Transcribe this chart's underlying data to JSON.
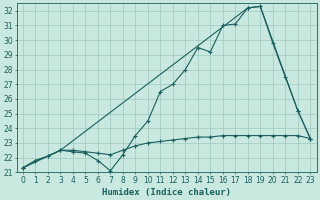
{
  "xlabel": "Humidex (Indice chaleur)",
  "bg_color": "#c8e8e0",
  "grid_color": "#a0c8c0",
  "line_color": "#1a6060",
  "xlim": [
    -0.5,
    23.5
  ],
  "ylim": [
    21,
    32.5
  ],
  "xticks": [
    0,
    1,
    2,
    3,
    4,
    5,
    6,
    7,
    8,
    9,
    10,
    11,
    12,
    13,
    14,
    15,
    16,
    17,
    18,
    19,
    20,
    21,
    22,
    23
  ],
  "yticks": [
    21,
    22,
    23,
    24,
    25,
    26,
    27,
    28,
    29,
    30,
    31,
    32
  ],
  "line1_x": [
    0,
    1,
    2,
    3,
    4,
    5,
    6,
    7,
    8,
    9,
    10,
    11,
    12,
    13,
    14,
    15,
    16,
    17,
    18,
    19,
    20,
    21,
    22,
    23
  ],
  "line1_y": [
    21.3,
    21.8,
    22.1,
    22.5,
    22.4,
    22.3,
    21.8,
    21.1,
    22.2,
    23.5,
    24.5,
    26.5,
    27.0,
    28.0,
    29.5,
    29.2,
    31.0,
    31.1,
    32.2,
    32.3,
    29.8,
    27.5,
    25.2,
    23.3
  ],
  "line2_x": [
    0,
    1,
    2,
    3,
    4,
    5,
    6,
    7,
    8,
    9,
    10,
    11,
    12,
    13,
    14,
    15,
    16,
    17,
    18,
    19,
    20,
    21,
    22,
    23
  ],
  "line2_y": [
    21.3,
    21.8,
    22.1,
    22.5,
    22.5,
    22.4,
    22.3,
    22.2,
    22.5,
    22.8,
    23.0,
    23.1,
    23.2,
    23.3,
    23.4,
    23.4,
    23.5,
    23.5,
    23.5,
    23.5,
    23.5,
    23.5,
    23.5,
    23.3
  ],
  "line3_x": [
    0,
    3,
    18,
    19,
    22,
    23
  ],
  "line3_y": [
    21.3,
    22.5,
    32.2,
    32.3,
    25.2,
    23.3
  ],
  "marker": "+"
}
